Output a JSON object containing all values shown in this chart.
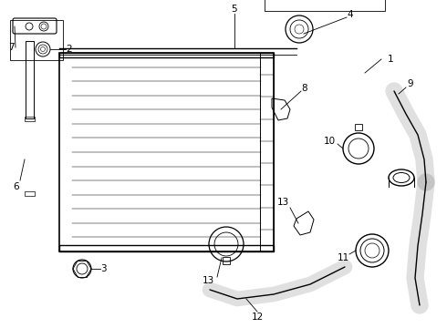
{
  "bg_color": "#ffffff",
  "line_color": "#000000",
  "label_color": "#000000",
  "fs": 7.5
}
